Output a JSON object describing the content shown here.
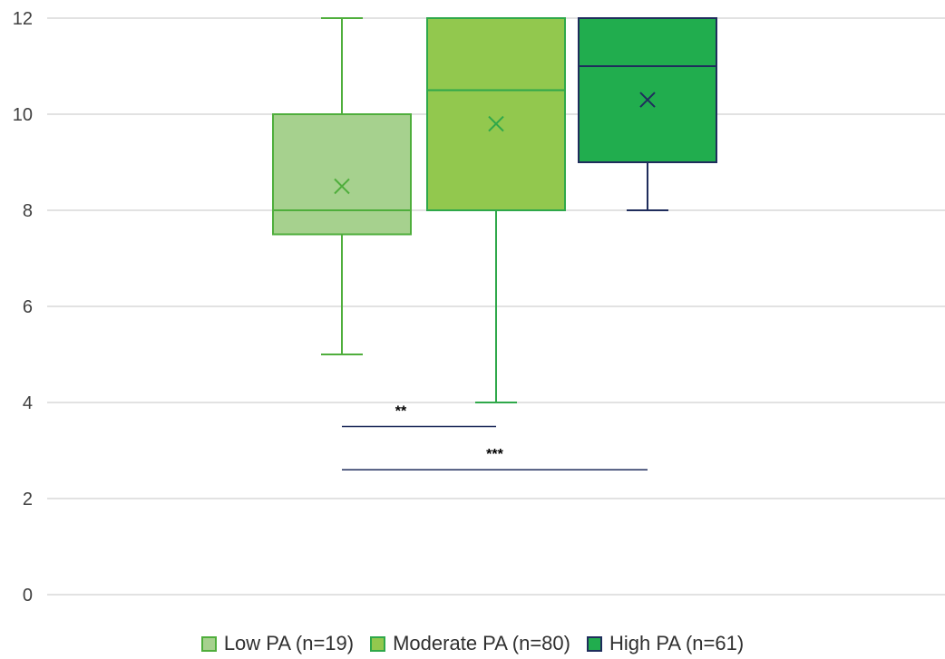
{
  "chart_data": {
    "type": "boxplot",
    "title": "",
    "xlabel": "",
    "ylabel": "",
    "ylim": [
      0,
      12
    ],
    "yticks": [
      "0",
      "2",
      "4",
      "6",
      "8",
      "10",
      "12"
    ],
    "grid": true,
    "legend_position": "bottom",
    "series": [
      {
        "name": "Low PA (n=19)",
        "min": 5,
        "q1": 7.5,
        "median": 8,
        "q3": 10,
        "max": 12,
        "mean": 8.5,
        "fill": "#a6d18e",
        "stroke": "#4fae3c",
        "whisker": "#4fae3c"
      },
      {
        "name": "Moderate PA (n=80)",
        "min": 4,
        "q1": 8,
        "median": 10.5,
        "q3": 12,
        "max": 12,
        "mean": 9.8,
        "fill": "#92c84e",
        "stroke": "#2fa84a",
        "whisker": "#2fa84a"
      },
      {
        "name": "High PA (n=61)",
        "min": 8,
        "q1": 9,
        "median": 11,
        "q3": 12,
        "max": 12,
        "mean": 10.3,
        "fill": "#21ad4e",
        "stroke": "#1f2d5c",
        "whisker": "#1f2d5c"
      }
    ],
    "significance": [
      {
        "label": "**",
        "from": 0,
        "to": 1,
        "y": 3.5
      },
      {
        "label": "***",
        "from": 0,
        "to": 2,
        "y": 2.6
      }
    ],
    "sig_line_color": "#1f2d5c",
    "grid_color": "#d9d9d9"
  }
}
